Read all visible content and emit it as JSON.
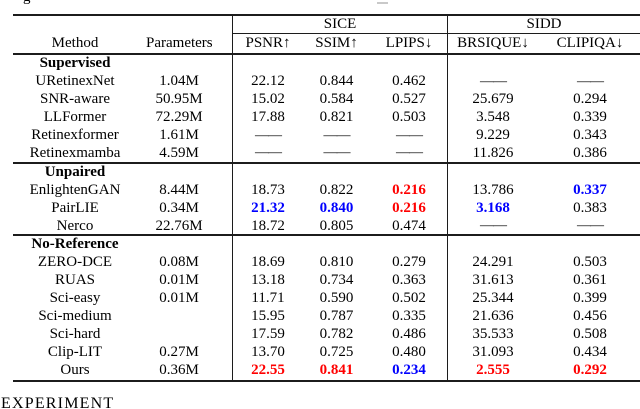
{
  "page": {
    "top_fragment_text": "g",
    "bottom_section_heading": "EXPERIMENT"
  },
  "colors": {
    "best_value": "#ff0000",
    "second_best_value": "#0000ff",
    "rule": "#1c1c1c"
  },
  "table": {
    "group_headers": [
      {
        "label": "SICE"
      },
      {
        "label": "SIDD"
      }
    ],
    "column_headers": [
      "Method",
      "Parameters",
      "PSNR↑",
      "SSIM↑",
      "LPIPS↓",
      "BRSIQUE↓",
      "CLIPIQA↓"
    ],
    "missing_value_marker": "——",
    "sections": [
      {
        "title": "Supervised",
        "rows": [
          {
            "cells": [
              {
                "t": "URetinexNet"
              },
              {
                "t": "1.04M"
              },
              {
                "t": "22.12"
              },
              {
                "t": "0.844"
              },
              {
                "t": "0.462"
              },
              {
                "t": "——",
                "dash": true
              },
              {
                "t": "——",
                "dash": true
              }
            ]
          },
          {
            "cells": [
              {
                "t": "SNR-aware"
              },
              {
                "t": "50.95M"
              },
              {
                "t": "15.02"
              },
              {
                "t": "0.584"
              },
              {
                "t": "0.527"
              },
              {
                "t": "25.679"
              },
              {
                "t": "0.294"
              }
            ]
          },
          {
            "cells": [
              {
                "t": "LLFormer"
              },
              {
                "t": "72.29M"
              },
              {
                "t": "17.88"
              },
              {
                "t": "0.821"
              },
              {
                "t": "0.503"
              },
              {
                "t": "3.548"
              },
              {
                "t": "0.339"
              }
            ]
          },
          {
            "cells": [
              {
                "t": "Retinexformer"
              },
              {
                "t": "1.61M"
              },
              {
                "t": "——",
                "dash": true
              },
              {
                "t": "——",
                "dash": true
              },
              {
                "t": "——",
                "dash": true
              },
              {
                "t": "9.229"
              },
              {
                "t": "0.343"
              }
            ]
          },
          {
            "cells": [
              {
                "t": "Retinexmamba"
              },
              {
                "t": "4.59M"
              },
              {
                "t": "——",
                "dash": true
              },
              {
                "t": "——",
                "dash": true
              },
              {
                "t": "——",
                "dash": true
              },
              {
                "t": "11.826"
              },
              {
                "t": "0.386"
              }
            ]
          }
        ]
      },
      {
        "title": "Unpaired",
        "rows": [
          {
            "cells": [
              {
                "t": "EnlightenGAN"
              },
              {
                "t": "8.44M"
              },
              {
                "t": "18.73"
              },
              {
                "t": "0.822"
              },
              {
                "t": "0.216",
                "hl": "red"
              },
              {
                "t": "13.786"
              },
              {
                "t": "0.337",
                "hl": "blue"
              }
            ]
          },
          {
            "cells": [
              {
                "t": "PairLIE"
              },
              {
                "t": "0.34M"
              },
              {
                "t": "21.32",
                "hl": "blue"
              },
              {
                "t": "0.840",
                "hl": "blue"
              },
              {
                "t": "0.216",
                "hl": "red"
              },
              {
                "t": "3.168",
                "hl": "blue"
              },
              {
                "t": "0.383"
              }
            ]
          },
          {
            "cells": [
              {
                "t": "Nerco"
              },
              {
                "t": "22.76M"
              },
              {
                "t": "18.72"
              },
              {
                "t": "0.805"
              },
              {
                "t": "0.474"
              },
              {
                "t": "——",
                "dash": true
              },
              {
                "t": "——",
                "dash": true
              }
            ]
          }
        ]
      },
      {
        "title": "No-Reference",
        "rows": [
          {
            "cells": [
              {
                "t": "ZERO-DCE"
              },
              {
                "t": "0.08M"
              },
              {
                "t": "18.69"
              },
              {
                "t": "0.810"
              },
              {
                "t": "0.279"
              },
              {
                "t": "24.291"
              },
              {
                "t": "0.503"
              }
            ]
          },
          {
            "cells": [
              {
                "t": "RUAS"
              },
              {
                "t": "0.01M"
              },
              {
                "t": "13.18"
              },
              {
                "t": "0.734"
              },
              {
                "t": "0.363"
              },
              {
                "t": "31.613"
              },
              {
                "t": "0.361"
              }
            ]
          },
          {
            "cells": [
              {
                "t": "Sci-easy"
              },
              {
                "t": "0.01M"
              },
              {
                "t": "11.71"
              },
              {
                "t": "0.590"
              },
              {
                "t": "0.502"
              },
              {
                "t": "25.344"
              },
              {
                "t": "0.399"
              }
            ]
          },
          {
            "cells": [
              {
                "t": "Sci-medium"
              },
              {
                "t": ""
              },
              {
                "t": "15.95"
              },
              {
                "t": "0.787"
              },
              {
                "t": "0.335"
              },
              {
                "t": "21.636"
              },
              {
                "t": "0.456"
              }
            ]
          },
          {
            "cells": [
              {
                "t": "Sci-hard"
              },
              {
                "t": ""
              },
              {
                "t": "17.59"
              },
              {
                "t": "0.782"
              },
              {
                "t": "0.486"
              },
              {
                "t": "35.533"
              },
              {
                "t": "0.508"
              }
            ]
          },
          {
            "cells": [
              {
                "t": "Clip-LIT"
              },
              {
                "t": "0.27M"
              },
              {
                "t": "13.70"
              },
              {
                "t": "0.725"
              },
              {
                "t": "0.480"
              },
              {
                "t": "31.093"
              },
              {
                "t": "0.434"
              }
            ]
          },
          {
            "cells": [
              {
                "t": "Ours"
              },
              {
                "t": "0.36M"
              },
              {
                "t": "22.55",
                "hl": "red"
              },
              {
                "t": "0.841",
                "hl": "red"
              },
              {
                "t": "0.234",
                "hl": "blue"
              },
              {
                "t": "2.555",
                "hl": "red"
              },
              {
                "t": "0.292",
                "hl": "red"
              }
            ]
          }
        ]
      }
    ]
  }
}
